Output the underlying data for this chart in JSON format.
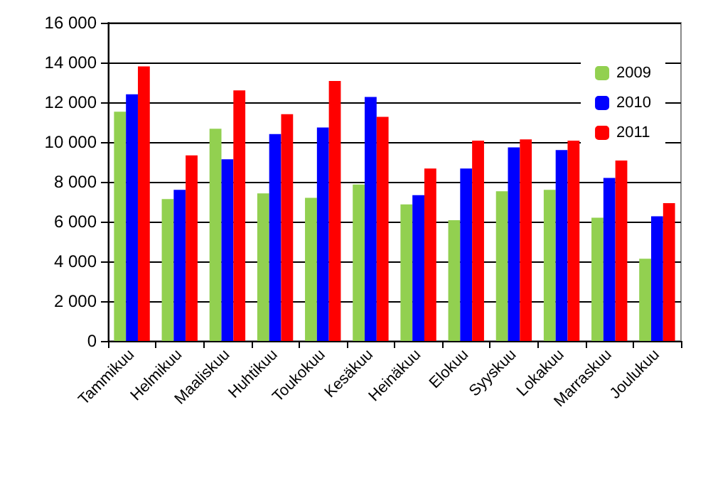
{
  "chart_data": {
    "type": "bar",
    "categories": [
      "Tammikuu",
      "Helmikuu",
      "Maaliskuu",
      "Huhtikuu",
      "Toukokuu",
      "Kesäkuu",
      "Heinäkuu",
      "Elokuu",
      "Syyskuu",
      "Lokakuu",
      "Marraskuu",
      "Joulukuu"
    ],
    "series": [
      {
        "name": "2009",
        "color": "#92d050",
        "values": [
          11530,
          7130,
          10670,
          7420,
          7200,
          7870,
          6870,
          6070,
          7530,
          7600,
          6200,
          4130
        ]
      },
      {
        "name": "2010",
        "color": "#0000ff",
        "values": [
          12400,
          7600,
          9130,
          10400,
          10730,
          12270,
          7330,
          8670,
          9730,
          9600,
          8200,
          6270
        ]
      },
      {
        "name": "2011",
        "color": "#ff0000",
        "values": [
          13800,
          9330,
          12600,
          11400,
          13070,
          11270,
          8670,
          10070,
          10130,
          10070,
          9070,
          6930
        ]
      }
    ],
    "ylim": [
      0,
      16000
    ],
    "yticks": [
      {
        "value": 0,
        "label": "0"
      },
      {
        "value": 2000,
        "label": "2 000"
      },
      {
        "value": 4000,
        "label": "4 000"
      },
      {
        "value": 6000,
        "label": "6 000"
      },
      {
        "value": 8000,
        "label": "8 000"
      },
      {
        "value": 10000,
        "label": "10 000"
      },
      {
        "value": 12000,
        "label": "12 000"
      },
      {
        "value": 14000,
        "label": "14 000"
      },
      {
        "value": 16000,
        "label": "16 000"
      }
    ],
    "grid": "y",
    "legend": "top right"
  }
}
